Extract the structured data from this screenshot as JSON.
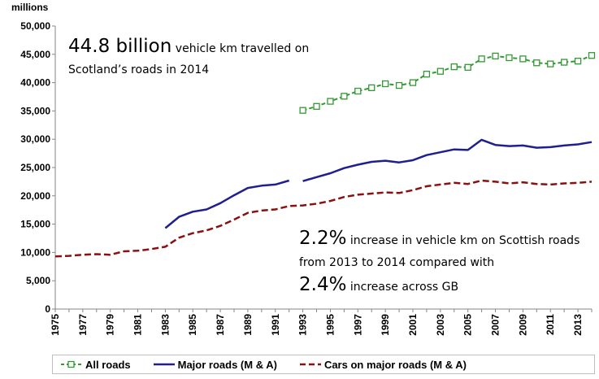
{
  "chart_data": {
    "type": "line",
    "title": "",
    "ylabel": "millions",
    "xlabel": "",
    "ylim": [
      0,
      50000
    ],
    "xlim": [
      1975,
      2014
    ],
    "grid": false,
    "yticks": [
      0,
      5000,
      10000,
      15000,
      20000,
      25000,
      30000,
      35000,
      40000,
      45000,
      50000
    ],
    "ytick_labels": [
      "0",
      "5,000",
      "10,000",
      "15,000",
      "20,000",
      "25,000",
      "30,000",
      "35,000",
      "40,000",
      "45,000",
      "50,000"
    ],
    "xtick_labels": [
      "1975",
      "1977",
      "1979",
      "1981",
      "1983",
      "1985",
      "1987",
      "1989",
      "1991",
      "1993",
      "1995",
      "1997",
      "1999",
      "2001",
      "2003",
      "2005",
      "2007",
      "2009",
      "2011",
      "2013"
    ],
    "legend_position": "bottom",
    "series": [
      {
        "name": "All roads",
        "color": "#339933",
        "style": "dashed-square-markers",
        "segments": [
          {
            "x": [
              1993,
              1994,
              1995,
              1996,
              1997,
              1998,
              1999,
              2000,
              2001,
              2002,
              2003,
              2004,
              2005,
              2006,
              2007,
              2008,
              2009,
              2010,
              2011,
              2012,
              2013,
              2014
            ],
            "y": [
              35100,
              35800,
              36700,
              37600,
              38500,
              39100,
              39800,
              39500,
              40000,
              41500,
              42000,
              42800,
              42700,
              44200,
              44700,
              44400,
              44200,
              43500,
              43300,
              43600,
              43800,
              44800
            ]
          }
        ]
      },
      {
        "name": "Major roads (M & A)",
        "color": "#1f1f8f",
        "style": "solid",
        "segments": [
          {
            "x": [
              1983,
              1984,
              1985,
              1986,
              1987,
              1988,
              1989,
              1990,
              1991,
              1992
            ],
            "y": [
              14300,
              16300,
              17200,
              17600,
              18700,
              20100,
              21400,
              21800,
              22000,
              22700
            ]
          },
          {
            "x": [
              1993,
              1994,
              1995,
              1996,
              1997,
              1998,
              1999,
              2000,
              2001,
              2002,
              2003,
              2004,
              2005,
              2006,
              2007,
              2008,
              2009,
              2010,
              2011,
              2012,
              2013,
              2014
            ],
            "y": [
              22600,
              23300,
              24000,
              24900,
              25500,
              26000,
              26200,
              25900,
              26300,
              27200,
              27700,
              28200,
              28100,
              29900,
              29000,
              28800,
              28900,
              28500,
              28600,
              28900,
              29100,
              29500
            ]
          }
        ]
      },
      {
        "name": "Cars on major roads (M & A)",
        "color": "#8b1010",
        "style": "dashed",
        "segments": [
          {
            "x": [
              1975,
              1976,
              1977,
              1978,
              1979,
              1980,
              1981,
              1982,
              1983,
              1984,
              1985,
              1986,
              1987,
              1988,
              1989,
              1990,
              1991,
              1992,
              1993,
              1994,
              1995,
              1996,
              1997,
              1998,
              1999,
              2000,
              2001,
              2002,
              2003,
              2004,
              2005,
              2006,
              2007,
              2008,
              2009,
              2010,
              2011,
              2012,
              2013,
              2014
            ],
            "y": [
              9300,
              9400,
              9600,
              9700,
              9600,
              10200,
              10300,
              10600,
              11000,
              12600,
              13400,
              13900,
              14700,
              15800,
              17000,
              17400,
              17600,
              18200,
              18300,
              18600,
              19100,
              19800,
              20200,
              20400,
              20600,
              20500,
              21000,
              21700,
              22000,
              22300,
              22100,
              22700,
              22500,
              22200,
              22400,
              22100,
              22000,
              22200,
              22300,
              22500
            ]
          }
        ]
      }
    ],
    "annotations": [
      {
        "highlight": "44.8 billion",
        "text": "vehicle km travelled on Scotland's roads in 2014"
      },
      {
        "highlight": "2.2%",
        "text": "increase in vehicle km on Scottish roads from 2013 to 2014 compared with",
        "highlight2": "2.4%",
        "text2": "increase across GB"
      }
    ]
  },
  "ui": {
    "unit_label": "millions",
    "ann1_big": "44.8 billion",
    "ann1_rest": " vehicle km travelled on Scotland’s roads in 2014",
    "ann2_big1": "2.2%",
    "ann2_rest1": " increase in vehicle km on Scottish roads from 2013 to 2014 compared with",
    "ann2_big2": "2.4%",
    "ann2_rest2": " increase across GB",
    "legend": [
      "All roads",
      "Major roads (M & A)",
      "Cars on major roads (M & A)"
    ]
  }
}
